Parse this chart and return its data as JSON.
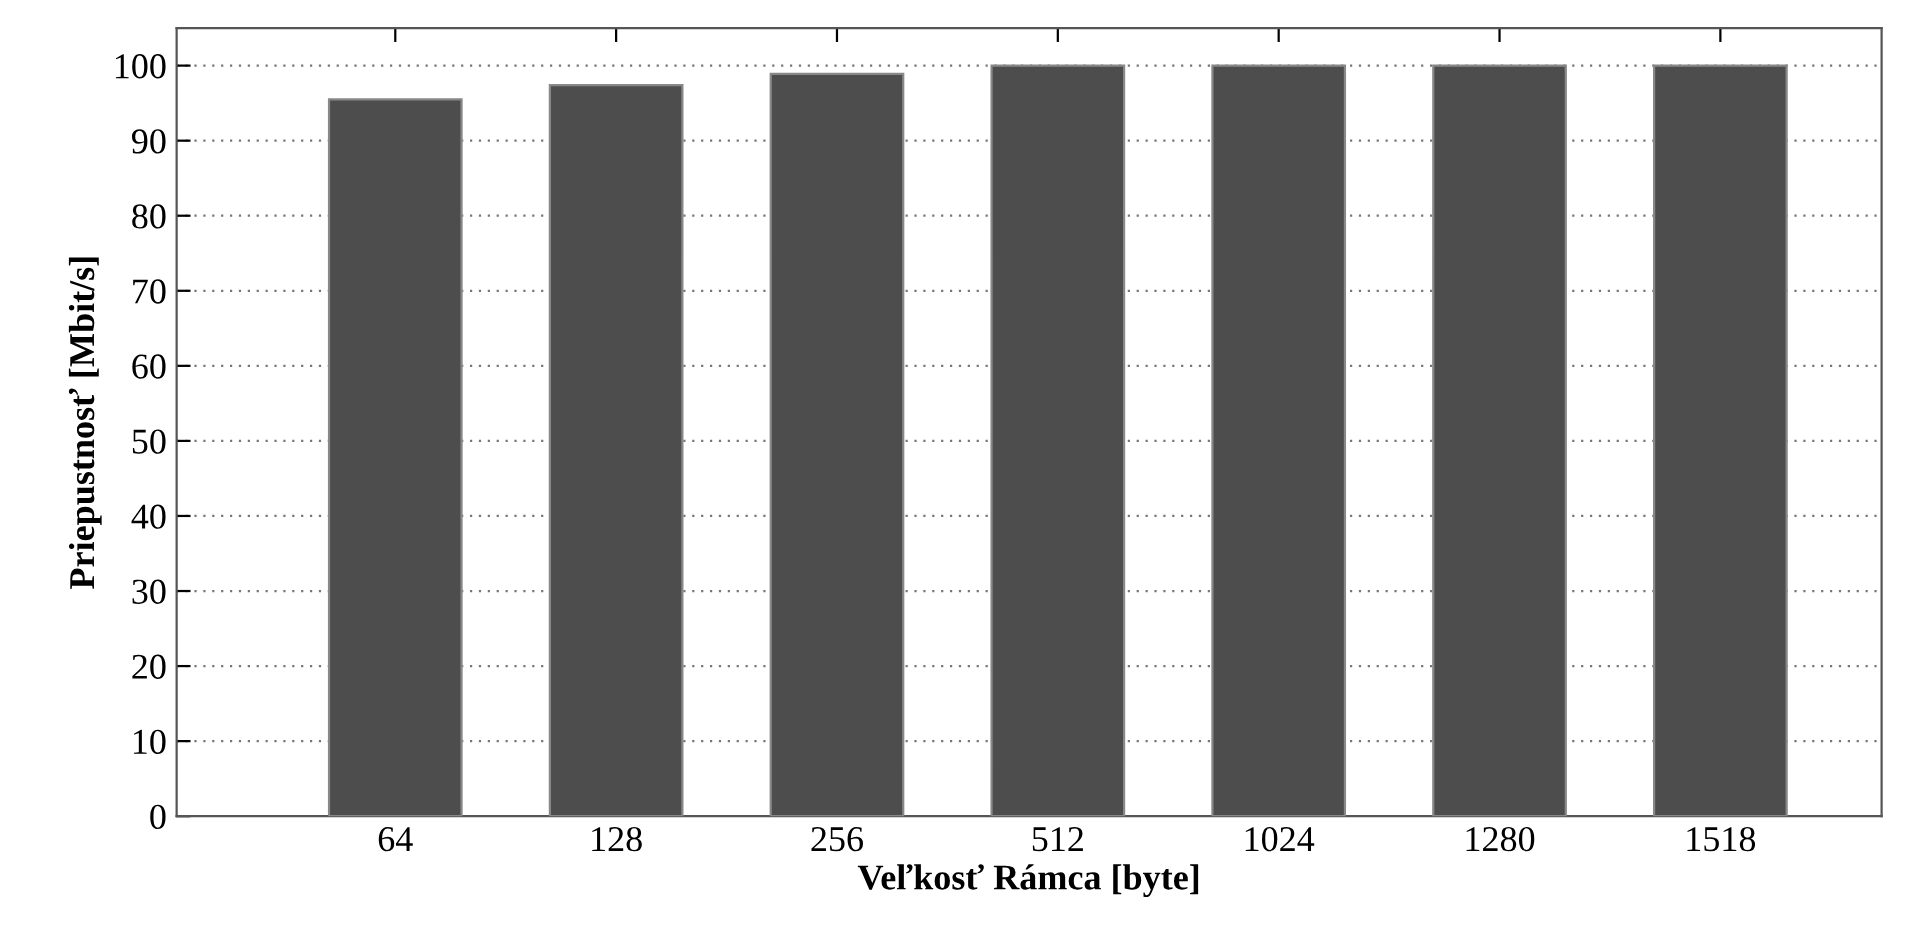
{
  "chart_data": {
    "type": "bar",
    "xlabel": "Veľkosť Rámca [byte]",
    "ylabel": "Priepustnosť [Mbit/s]",
    "categories": [
      "64",
      "128",
      "256",
      "512",
      "1024",
      "1280",
      "1518"
    ],
    "values": [
      95.5,
      97.4,
      98.9,
      100,
      100,
      100,
      100
    ],
    "color": "#4d4d4d",
    "ylim": [
      0,
      105
    ],
    "yticks": [
      0,
      10,
      20,
      30,
      40,
      50,
      60,
      70,
      80,
      90,
      100
    ],
    "grid": "y",
    "legend": false
  }
}
